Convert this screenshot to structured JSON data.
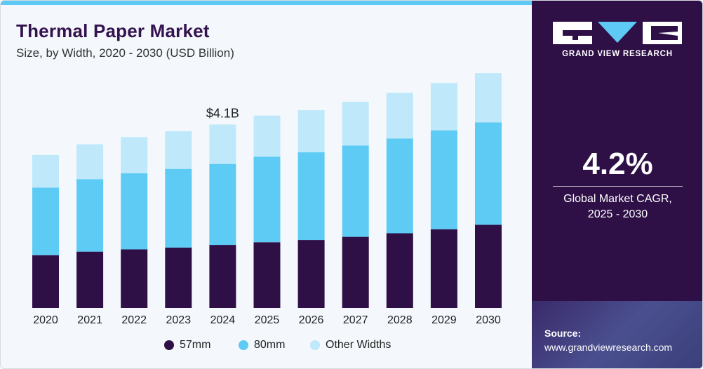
{
  "header": {
    "title": "Thermal Paper Market",
    "subtitle": "Size, by Width, 2020 - 2030 (USD Billion)"
  },
  "chart_data": {
    "type": "bar",
    "stacked": true,
    "categories": [
      "2020",
      "2021",
      "2022",
      "2023",
      "2024",
      "2025",
      "2026",
      "2027",
      "2028",
      "2029",
      "2030"
    ],
    "series": [
      {
        "name": "57mm",
        "color": "#2e1047",
        "values": [
          1.18,
          1.26,
          1.31,
          1.35,
          1.41,
          1.47,
          1.52,
          1.59,
          1.67,
          1.76,
          1.86
        ]
      },
      {
        "name": "80mm",
        "color": "#5ecbf4",
        "values": [
          1.51,
          1.62,
          1.7,
          1.76,
          1.81,
          1.91,
          1.96,
          2.04,
          2.12,
          2.21,
          2.29
        ]
      },
      {
        "name": "Other Widths",
        "color": "#bfe8fb",
        "values": [
          0.73,
          0.78,
          0.81,
          0.84,
          0.88,
          0.92,
          0.94,
          0.98,
          1.02,
          1.06,
          1.1
        ]
      }
    ],
    "annotation": {
      "category": "2024",
      "text": "$4.1B"
    },
    "ylim": [
      0,
      5.3
    ],
    "legend_position": "bottom",
    "grid": false
  },
  "sidebar": {
    "brand": "GRAND VIEW RESEARCH",
    "cagr_value": "4.2%",
    "cagr_label_line1": "Global Market CAGR,",
    "cagr_label_line2": "2025 - 2030",
    "source_label": "Source:",
    "source_url": "www.grandviewresearch.com"
  },
  "colors": {
    "brand_dark": "#2e1047",
    "accent": "#5ec9f5",
    "light_accent": "#bfe8fb"
  }
}
